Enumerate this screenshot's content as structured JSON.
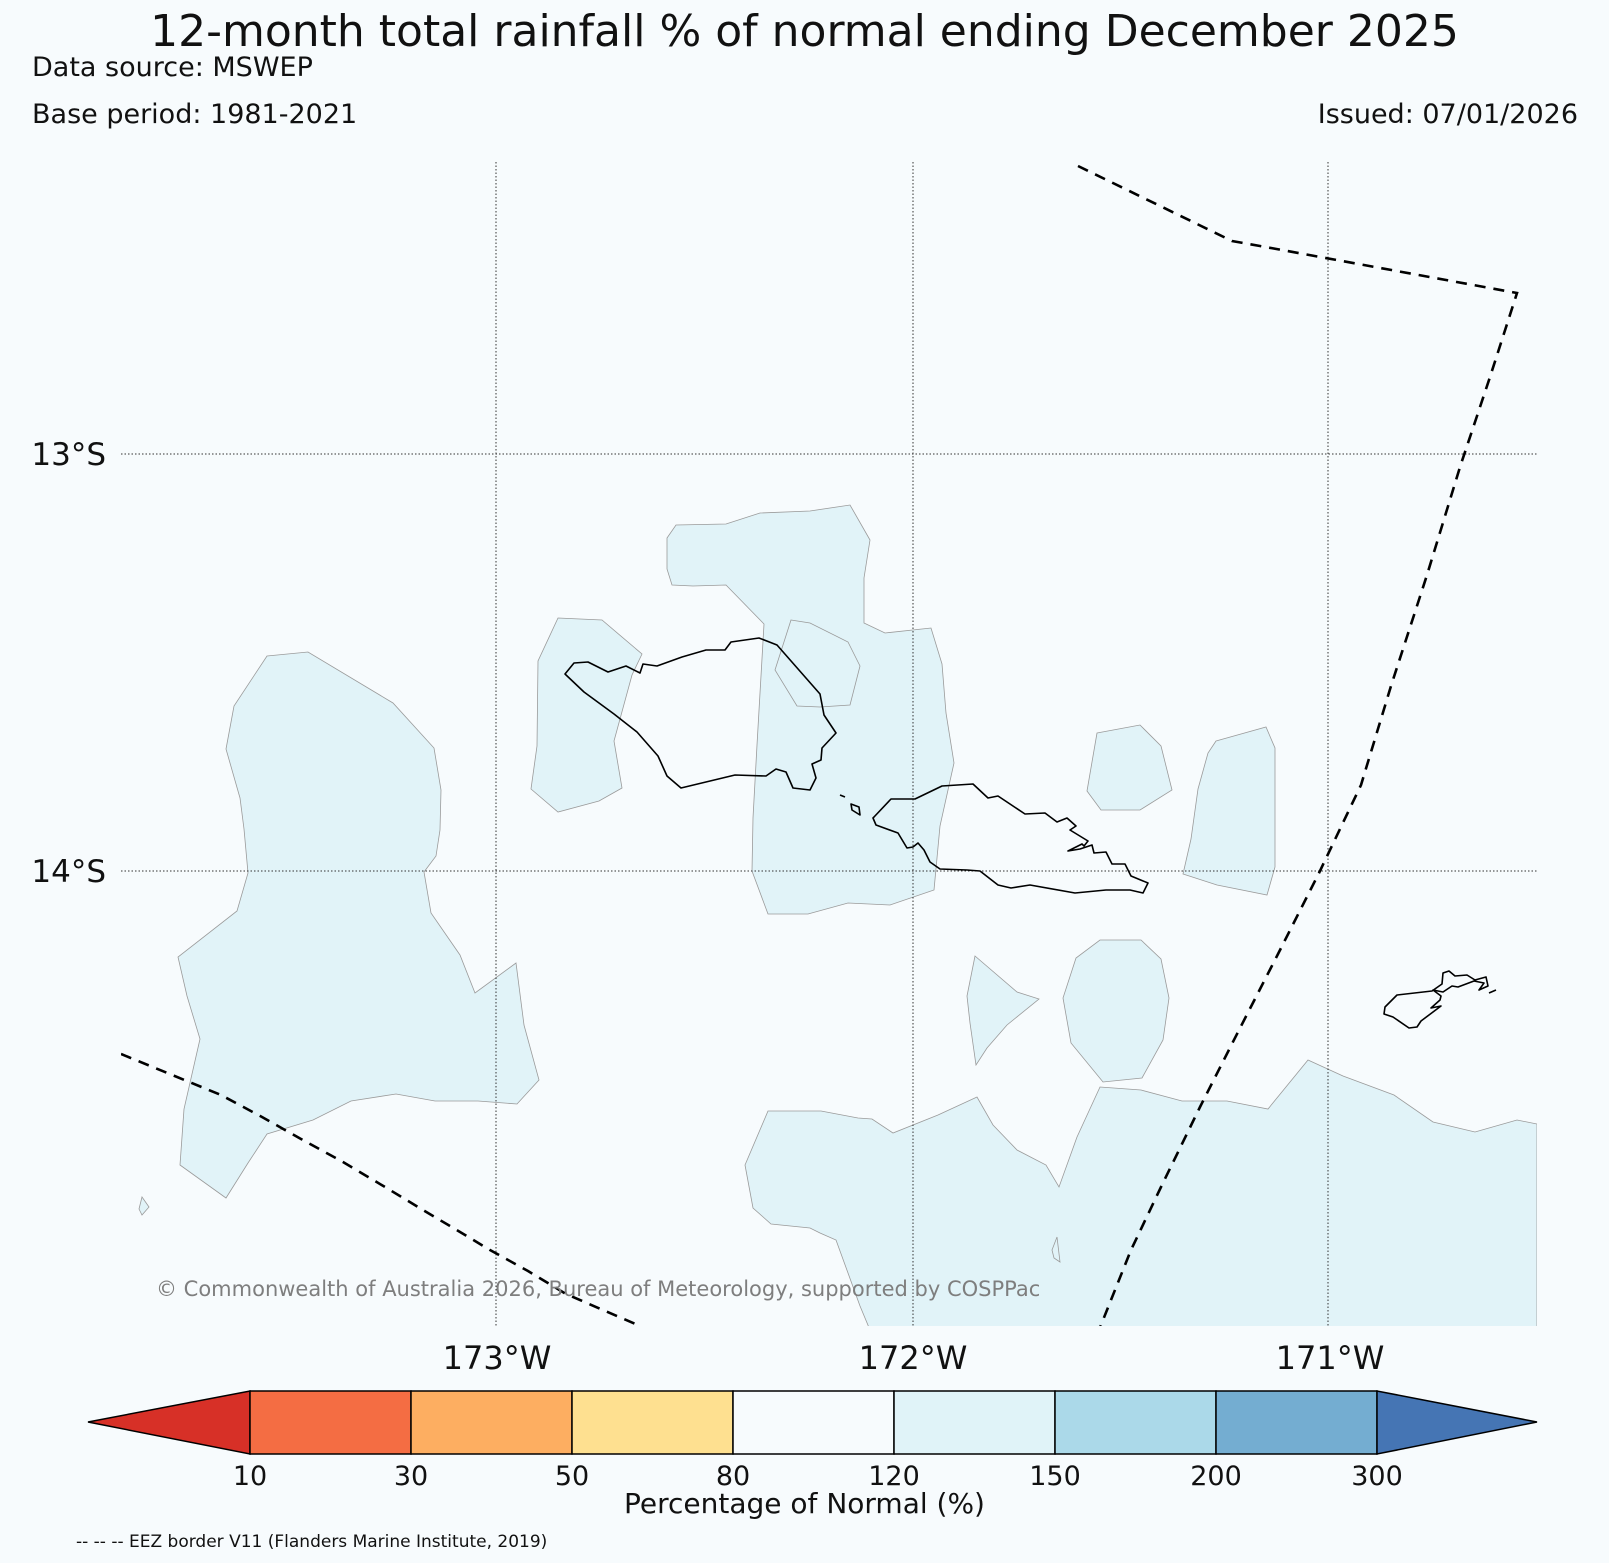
{
  "header": {
    "title": "12-month total rainfall % of normal ending December 2025",
    "data_source": "Data source: MSWEP",
    "base_period": "Base period: 1981-2021",
    "issued": "Issued: 07/01/2026"
  },
  "map": {
    "lon_range": [
      -173.9,
      -170.5
    ],
    "lat_range": [
      -12.3,
      -15.1
    ],
    "lat_ticks": [
      {
        "value": -13,
        "label": "13°S"
      },
      {
        "value": -14,
        "label": "14°S"
      }
    ],
    "lon_ticks": [
      {
        "value": -173,
        "label": "173°W"
      },
      {
        "value": -172,
        "label": "172°W"
      },
      {
        "value": -171,
        "label": "171°W"
      }
    ],
    "ocean_color": "#f7fbfd",
    "copyright": "© Commonwealth of Australia 2026, Bureau of Meteorology, supported by COSPPac"
  },
  "colorbar": {
    "title": "Percentage of Normal (%)",
    "ticks": [
      "10",
      "30",
      "50",
      "80",
      "120",
      "150",
      "200",
      "300"
    ],
    "colors": [
      "#d73027",
      "#f46d43",
      "#fdae61",
      "#fee090",
      "#f7fbfd",
      "#e0f3f8",
      "#abd9e9",
      "#74add1",
      "#4575b4"
    ],
    "legend_note": "-- -- -- EEZ border V11 (Flanders Marine Institute, 2019)"
  }
}
